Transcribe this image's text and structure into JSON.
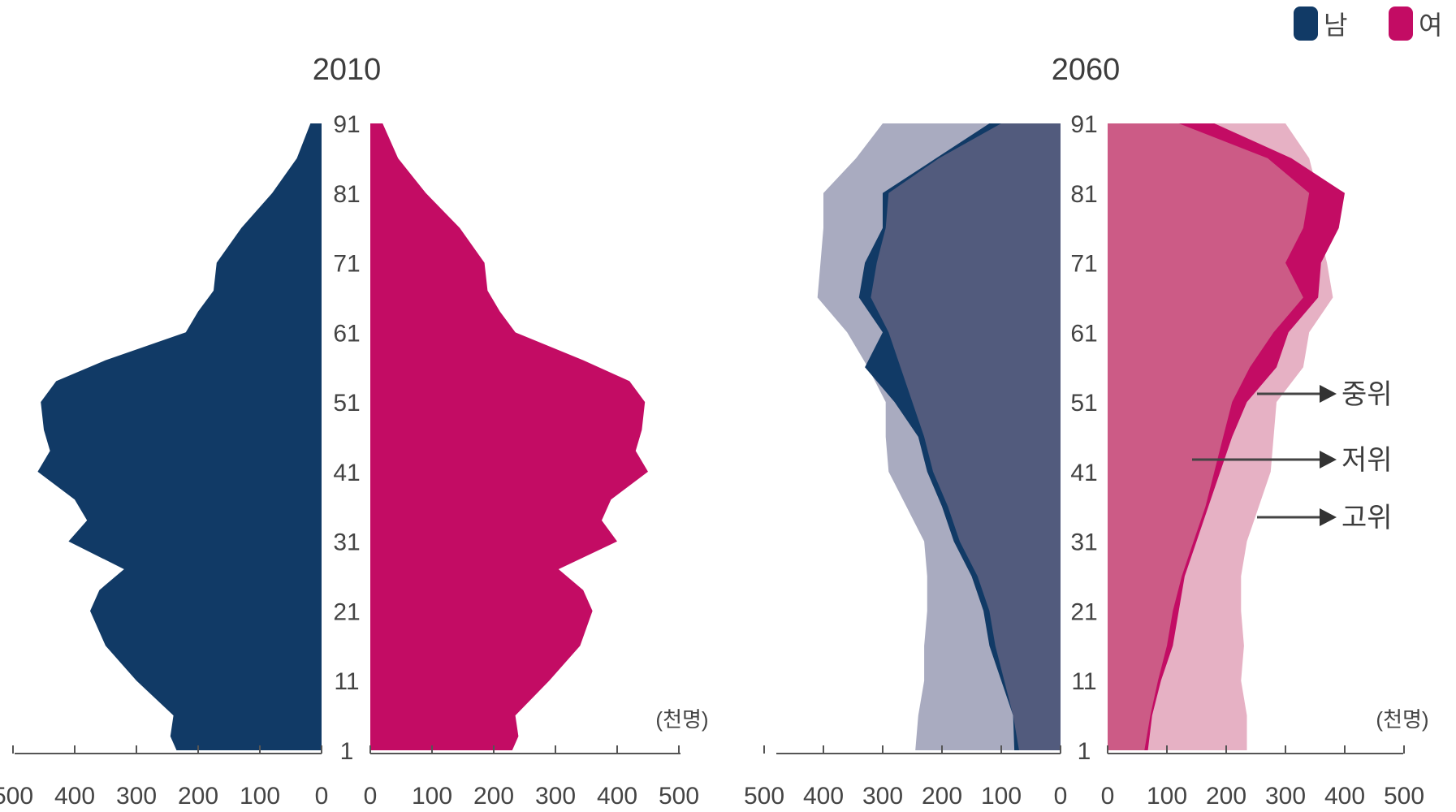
{
  "legend": {
    "male_label": "남",
    "female_label": "여",
    "male_color": "#113a66",
    "female_color": "#c30c64"
  },
  "unit_label": "(천명)",
  "annotations": [
    "중위",
    "저위",
    "고위"
  ],
  "chart_data": [
    {
      "type": "area",
      "title": "2010",
      "age_ticks": [
        91,
        81,
        71,
        61,
        51,
        41,
        31,
        21,
        11,
        1
      ],
      "x_ticks": [
        500,
        400,
        300,
        200,
        100,
        0
      ],
      "xlim": [
        0,
        500
      ],
      "ages": [
        1,
        3,
        6,
        11,
        16,
        21,
        24,
        27,
        31,
        34,
        37,
        41,
        44,
        47,
        51,
        54,
        57,
        61,
        64,
        67,
        71,
        76,
        81,
        86,
        91
      ],
      "series": [
        {
          "name": "남",
          "color": "#113a66",
          "values": [
            235,
            245,
            240,
            300,
            350,
            375,
            360,
            320,
            410,
            380,
            400,
            460,
            440,
            450,
            455,
            430,
            350,
            220,
            200,
            175,
            170,
            130,
            80,
            40,
            18
          ]
        },
        {
          "name": "여",
          "color": "#c30c64",
          "values": [
            230,
            240,
            235,
            290,
            340,
            360,
            345,
            305,
            400,
            375,
            390,
            450,
            430,
            440,
            445,
            420,
            345,
            235,
            210,
            190,
            185,
            145,
            90,
            45,
            20
          ]
        }
      ]
    },
    {
      "type": "area",
      "title": "2060",
      "age_ticks": [
        91,
        81,
        71,
        61,
        51,
        41,
        31,
        21,
        11,
        1
      ],
      "x_ticks": [
        500,
        400,
        300,
        200,
        100,
        0
      ],
      "x_ticks_right": [
        0,
        100,
        200,
        300,
        400,
        500
      ],
      "xlim": [
        0,
        500
      ],
      "ages": [
        1,
        6,
        11,
        16,
        21,
        26,
        31,
        36,
        41,
        46,
        51,
        56,
        61,
        66,
        71,
        76,
        81,
        86,
        91
      ],
      "series": [
        {
          "name": "남 고위",
          "color": "#a9abc0",
          "values": [
            245,
            240,
            230,
            230,
            225,
            225,
            230,
            260,
            290,
            295,
            295,
            325,
            360,
            410,
            405,
            400,
            400,
            345,
            300
          ]
        },
        {
          "name": "남 중위",
          "color": "#113a66",
          "values": [
            78,
            80,
            100,
            120,
            130,
            150,
            180,
            200,
            225,
            240,
            280,
            330,
            300,
            340,
            330,
            300,
            300,
            210,
            120
          ]
        },
        {
          "name": "남 저위",
          "color": "#525b7d",
          "values": [
            70,
            80,
            95,
            110,
            120,
            140,
            170,
            190,
            215,
            230,
            250,
            270,
            290,
            320,
            310,
            295,
            290,
            205,
            100
          ]
        },
        {
          "name": "여 고위",
          "color": "#e6b1c4",
          "values": [
            235,
            235,
            225,
            230,
            225,
            225,
            235,
            255,
            275,
            280,
            285,
            330,
            340,
            380,
            370,
            355,
            355,
            340,
            300
          ]
        },
        {
          "name": "여 중위",
          "color": "#c30c64",
          "values": [
            68,
            75,
            90,
            110,
            120,
            130,
            150,
            170,
            190,
            210,
            235,
            285,
            305,
            355,
            360,
            390,
            400,
            310,
            180
          ]
        },
        {
          "name": "여 저위",
          "color": "#cc5b86",
          "values": [
            62,
            72,
            85,
            100,
            110,
            125,
            145,
            165,
            180,
            195,
            210,
            240,
            280,
            330,
            300,
            330,
            340,
            270,
            120
          ]
        }
      ]
    }
  ]
}
